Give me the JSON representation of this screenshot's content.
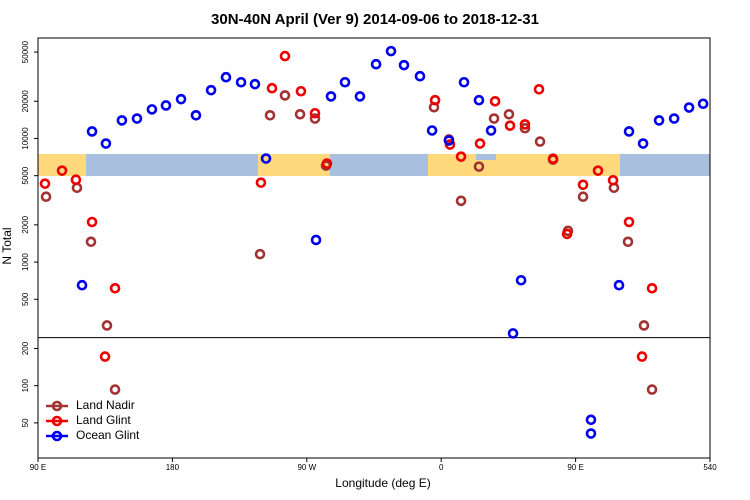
{
  "chart_data": {
    "type": "scatter",
    "title": "30N-40N April (Ver 9)   2014-09-06 to 2018-12-31",
    "x_label": "Longitude (deg E)",
    "y_label": "N Total",
    "xlim": [
      90,
      540
    ],
    "ylim": [
      26,
      65000
    ],
    "log_y": true,
    "hline": 245,
    "xticks": [
      {
        "value": 90,
        "label": "90 E"
      },
      180,
      {
        "value": 270,
        "label": "90 W"
      },
      {
        "value": 360,
        "label": "0"
      },
      {
        "value": 450,
        "label": "90 E"
      },
      540
    ],
    "yticks": [
      50,
      100,
      200,
      500,
      1000,
      2000,
      5000,
      10000,
      20000,
      50000
    ],
    "legend": "bottom left",
    "series": [
      {
        "name": "Land Nadir",
        "color": "#a33333",
        "x": [
          95.4,
          116.1,
          125.5,
          136.2,
          141.6,
          238.7,
          245.4,
          255.4,
          265.5,
          275.5,
          282.9,
          355.2,
          365.2,
          373.3,
          385.3,
          395.4,
          405.4,
          416.1,
          426.2,
          434.9,
          444.9,
          455.0,
          475.7,
          485.1,
          495.8,
          501.2
        ],
        "values": [
          3380,
          3990,
          1460,
          307,
          93,
          1160,
          15400,
          22300,
          15700,
          14500,
          6030,
          17900,
          9820,
          3130,
          5920,
          14500,
          15700,
          12100,
          9440,
          6740,
          1790,
          3380,
          3990,
          1460,
          307,
          93
        ]
      },
      {
        "name": "Land Glint",
        "color": "#ee0000",
        "x": [
          94.7,
          106.1,
          115.4,
          126.2,
          134.9,
          141.6,
          239.3,
          246.7,
          255.4,
          266.1,
          275.5,
          283.5,
          355.9,
          365.9,
          373.3,
          386.0,
          396.1,
          406.1,
          416.1,
          425.5,
          434.9,
          444.3,
          455.0,
          465.0,
          475.1,
          485.8,
          494.5,
          501.2
        ],
        "values": [
          4310,
          5490,
          4640,
          2110,
          172,
          614,
          4390,
          25500,
          46400,
          24100,
          16000,
          6270,
          20400,
          8930,
          7130,
          9100,
          20000,
          12700,
          13000,
          25000,
          6860,
          1690,
          4220,
          5490,
          4590,
          2110,
          172,
          614
        ]
      },
      {
        "name": "Ocean Glint",
        "color": "#0000ee",
        "x": [
          119.5,
          126.2,
          135.5,
          146.2,
          156.3,
          166.3,
          175.7,
          185.8,
          195.8,
          205.9,
          215.9,
          226.0,
          235.3,
          242.7,
          276.2,
          286.2,
          295.6,
          305.6,
          316.4,
          326.4,
          335.1,
          345.8,
          353.9,
          365.2,
          375.3,
          385.3,
          393.4,
          408.1,
          413.5,
          460.3,
          460.3,
          479.1,
          485.8,
          495.2,
          505.9,
          516.0,
          526.0,
          535.4
        ],
        "values": [
          650,
          11400,
          9100,
          14000,
          14500,
          17200,
          18500,
          20800,
          15400,
          24600,
          31300,
          28500,
          27500,
          6880,
          1510,
          21900,
          28500,
          21900,
          39900,
          50900,
          39200,
          31900,
          11600,
          9620,
          28500,
          20400,
          11600,
          265,
          713,
          53,
          41,
          650,
          11400,
          9100,
          14000,
          14500,
          17800,
          19100
        ]
      }
    ]
  }
}
